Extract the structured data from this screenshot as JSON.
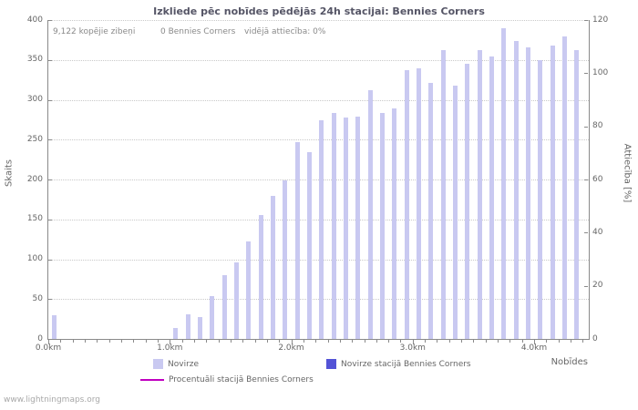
{
  "page": {
    "watermark": "www.lightningmaps.org"
  },
  "header": {
    "title": "Izkliede pēc nobīdes pēdējās 24h stacijai: Bennies Corners"
  },
  "annotations": {
    "total_strikes": "9,122 kopējie zibeņi",
    "station_strikes": "0 Bennies Corners",
    "avg_ratio": "vidējā attiecība: 0%"
  },
  "legend": {
    "items": [
      {
        "label": "Novirze",
        "color": "#c9c9f1",
        "type": "box"
      },
      {
        "label": "Novirze stacijā Bennies Corners",
        "color": "#5353d6",
        "type": "box"
      },
      {
        "label": "Procentuāli stacijā Bennies Corners",
        "color": "#c000c0",
        "type": "line"
      }
    ]
  },
  "chart_data": {
    "type": "bar",
    "title": "Izkliede pēc nobīdes pēdējās 24h stacijai: Bennies Corners",
    "xlabel": "Nobīdes",
    "ylabel": "Skaits",
    "ylabel_right": "Attiecība [%]",
    "xlim": [
      0,
      4.45
    ],
    "ylim": [
      0,
      400
    ],
    "ylim_right": [
      0,
      120
    ],
    "grid": "horizontal-dotted",
    "legend_position": "bottom",
    "x_major_ticks": [
      {
        "value": 0,
        "label": "0.0km"
      },
      {
        "value": 1,
        "label": "1.0km"
      },
      {
        "value": 2,
        "label": "2.0km"
      },
      {
        "value": 3,
        "label": "3.0km"
      },
      {
        "value": 4,
        "label": "4.0km"
      }
    ],
    "x_minor_tick_step": 0.1,
    "y_ticks_left": [
      0,
      50,
      100,
      150,
      200,
      250,
      300,
      350,
      400
    ],
    "y_ticks_right": [
      0,
      20,
      40,
      60,
      80,
      100,
      120
    ],
    "series": [
      {
        "name": "Novirze",
        "type": "bar",
        "color": "#c9c9f1",
        "points": [
          [
            0.05,
            30
          ],
          [
            1.05,
            14
          ],
          [
            1.15,
            31
          ],
          [
            1.25,
            27
          ],
          [
            1.35,
            54
          ],
          [
            1.45,
            80
          ],
          [
            1.55,
            96
          ],
          [
            1.65,
            122
          ],
          [
            1.75,
            155
          ],
          [
            1.85,
            180
          ],
          [
            1.95,
            199
          ],
          [
            2.05,
            247
          ],
          [
            2.15,
            234
          ],
          [
            2.25,
            274
          ],
          [
            2.35,
            283
          ],
          [
            2.45,
            278
          ],
          [
            2.55,
            279
          ],
          [
            2.65,
            312
          ],
          [
            2.75,
            283
          ],
          [
            2.85,
            289
          ],
          [
            2.95,
            337
          ],
          [
            3.05,
            339
          ],
          [
            3.15,
            321
          ],
          [
            3.25,
            362
          ],
          [
            3.35,
            318
          ],
          [
            3.45,
            345
          ],
          [
            3.55,
            362
          ],
          [
            3.65,
            354
          ],
          [
            3.75,
            390
          ],
          [
            3.85,
            374
          ],
          [
            3.95,
            366
          ],
          [
            4.05,
            350
          ],
          [
            4.15,
            368
          ],
          [
            4.25,
            380
          ],
          [
            4.35,
            362
          ]
        ]
      },
      {
        "name": "Novirze stacijā Bennies Corners",
        "type": "bar",
        "color": "#5353d6",
        "points": []
      },
      {
        "name": "Procentuāli stacijā Bennies Corners",
        "type": "line",
        "color": "#c000c0",
        "points": []
      }
    ]
  }
}
